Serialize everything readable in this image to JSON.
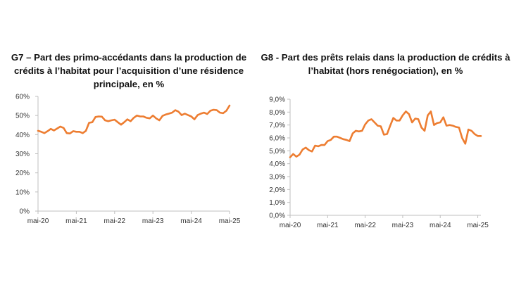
{
  "charts": [
    {
      "title": "G7 – Part des primo-accédants dans la production de crédits à l’habitat pour l’acquisition d’une résidence principale, en %",
      "color": "#ED7D31",
      "type": "line",
      "y_ticks": [
        "0%",
        "10%",
        "20%",
        "30%",
        "40%",
        "50%",
        "60%"
      ],
      "x_ticks": [
        "mai-20",
        "mai-21",
        "mai-22",
        "mai-23",
        "mai-24",
        "mai-25"
      ]
    },
    {
      "title": "G8 - Part des prêts relais dans la production de crédits à l’habitat (hors renégociation), en %",
      "color": "#ED7D31",
      "type": "line",
      "y_ticks": [
        "0,0%",
        "1,0%",
        "2,0%",
        "3,0%",
        "4,0%",
        "5,0%",
        "6,0%",
        "7,0%",
        "8,0%",
        "9,0%"
      ],
      "x_ticks": [
        "mai-20",
        "mai-21",
        "mai-22",
        "mai-23",
        "mai-24",
        "mai-25"
      ]
    }
  ],
  "chart_data": [
    {
      "type": "line",
      "title": "G7 – Part des primo-accédants dans la production de crédits à l’habitat pour l’acquisition d’une résidence principale, en %",
      "x_range": [
        "2020-05",
        "2025-05"
      ],
      "ylim": [
        0,
        60
      ],
      "y_unit": "%",
      "grid": false,
      "values": [
        42,
        41.5,
        40.8,
        41.8,
        43,
        42.2,
        43.2,
        44.2,
        43.5,
        40.8,
        40.6,
        41.8,
        41.5,
        41.5,
        40.8,
        42,
        46.2,
        46.5,
        49.2,
        49.5,
        49.4,
        47.5,
        47,
        47.5,
        47.8,
        46.5,
        45.2,
        46.5,
        48,
        47,
        48.8,
        50,
        49.5,
        49.5,
        48.8,
        48.5,
        50,
        48.5,
        47.5,
        49.8,
        50.5,
        51,
        51.5,
        52.8,
        52,
        50.2,
        51,
        50.2,
        49.5,
        48,
        50.2,
        51,
        51.5,
        50.8,
        52.5,
        53,
        52.8,
        51.5,
        51.2,
        52.5,
        55.2
      ]
    },
    {
      "type": "line",
      "title": "G8 - Part des prêts relais dans la production de crédits à l’habitat (hors renégociation), en %",
      "x_range": [
        "2020-05",
        "2025-05"
      ],
      "ylim": [
        0,
        9
      ],
      "y_unit": "%",
      "grid": false,
      "values": [
        4.5,
        4.75,
        4.55,
        4.7,
        5.1,
        5.25,
        5.05,
        4.95,
        5.4,
        5.35,
        5.45,
        5.45,
        5.75,
        5.85,
        6.1,
        6.1,
        6.0,
        5.9,
        5.85,
        5.75,
        6.35,
        6.55,
        6.5,
        6.55,
        7.05,
        7.35,
        7.45,
        7.2,
        6.95,
        6.9,
        6.25,
        6.3,
        6.95,
        7.55,
        7.35,
        7.35,
        7.75,
        8.05,
        7.85,
        7.2,
        7.5,
        7.45,
        6.8,
        6.55,
        7.75,
        8.05,
        7.0,
        7.15,
        7.2,
        7.6,
        6.95,
        7.0,
        6.95,
        6.85,
        6.8,
        6.0,
        5.55,
        6.65,
        6.55,
        6.3,
        6.15,
        6.15
      ]
    }
  ]
}
